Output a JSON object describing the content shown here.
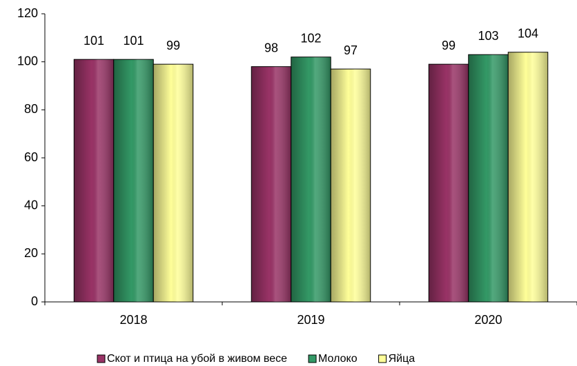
{
  "chart_data": {
    "type": "bar",
    "categories": [
      "2018",
      "2019",
      "2020"
    ],
    "series": [
      {
        "name": "Скот и птица на убой в живом весе",
        "color": "#993366",
        "values": [
          101,
          98,
          99
        ]
      },
      {
        "name": "Молоко",
        "color": "#339966",
        "values": [
          101,
          102,
          103
        ]
      },
      {
        "name": "Яйца",
        "color": "#ffff99",
        "values": [
          99,
          97,
          104
        ]
      }
    ],
    "ylim": [
      0,
      120
    ],
    "yticks": [
      0,
      20,
      40,
      60,
      80,
      100,
      120
    ],
    "grid": false,
    "legend": "bottom"
  }
}
